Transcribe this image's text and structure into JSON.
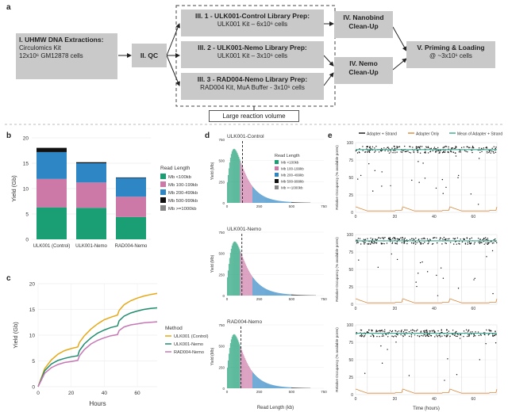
{
  "panel_a": {
    "letter": "a",
    "boxes": {
      "b1_title": "I. UHMW DNA Extractions:",
      "b1_l2": "Circulomics Kit",
      "b1_l3": "12x10⁶ GM12878 cells",
      "b2": "II. QC",
      "b3_title": "III. 1 - ULK001-Control Library Prep:",
      "b3_l2": "ULK001 Kit – 6x10⁶ cells",
      "b4_title": "III. 2 - ULK001-Nemo Library Prep:",
      "b4_l2": "ULK001 Kit – 3x10⁶ cells",
      "b5_title": "III. 3 - RAD004-Nemo Library Prep:",
      "b5_l2": "RAD004 Kit, MuA Buffer - 3x10⁶ cells",
      "b6_l1": "IV. Nanobind",
      "b6_l2": "Clean-Up",
      "b7_l1": "IV. Nemo",
      "b7_l2": "Clean-Up",
      "b8_l1": "V. Priming & Loading",
      "b8_l2": "@ ~3x10⁶ cells",
      "note": "Large reaction volume"
    }
  },
  "chart_data": [
    {
      "panel": "b",
      "type": "bar",
      "stacked": true,
      "categories": [
        "ULK001 (Control)",
        "ULK001-Nemo",
        "RAD004-Nemo"
      ],
      "ylabel": "Yield (Gb)",
      "ylim": [
        0,
        20
      ],
      "yticks": [
        0,
        5,
        10,
        15,
        20
      ],
      "legend_title": "Read Length",
      "series": [
        {
          "name": "Mb <100kb",
          "color": "#1a9e74",
          "values": [
            6.3,
            6.2,
            4.4
          ]
        },
        {
          "name": "Mb 100-199kb",
          "color": "#cc79a7",
          "values": [
            5.6,
            5.0,
            4.0
          ]
        },
        {
          "name": "Mb 200-499kb",
          "color": "#2f86c4",
          "values": [
            5.3,
            3.8,
            3.7
          ]
        },
        {
          "name": "Mb 500-999kb",
          "color": "#111111",
          "values": [
            0.8,
            0.2,
            0.1
          ]
        },
        {
          "name": "Mb >=1000kb",
          "color": "#888888",
          "values": [
            0.1,
            0.0,
            0.0
          ]
        }
      ]
    },
    {
      "panel": "c",
      "type": "line",
      "xlabel": "Hours",
      "ylabel": "Yield (Gb)",
      "xlim": [
        0,
        72
      ],
      "ylim": [
        0,
        20
      ],
      "xticks": [
        0,
        20,
        40,
        60
      ],
      "yticks": [
        0,
        5,
        10,
        15,
        20
      ],
      "legend_title": "Method",
      "series": [
        {
          "name": "ULK001 (Control)",
          "color": "#e6a817",
          "x": [
            0,
            4,
            8,
            12,
            16,
            20,
            24,
            25,
            28,
            32,
            36,
            40,
            44,
            48,
            49,
            52,
            56,
            60,
            64,
            68,
            72
          ],
          "y": [
            0,
            3.5,
            5.2,
            6.3,
            7.0,
            7.4,
            7.7,
            8.6,
            9.9,
            11.2,
            12.2,
            13.0,
            13.5,
            13.9,
            14.8,
            15.9,
            16.7,
            17.2,
            17.6,
            17.9,
            18.1
          ]
        },
        {
          "name": "ULK001-Nemo",
          "color": "#1f8c6e",
          "x": [
            0,
            4,
            8,
            12,
            16,
            20,
            24,
            25,
            28,
            32,
            36,
            40,
            44,
            48,
            49,
            52,
            56,
            60,
            64,
            68,
            72
          ],
          "y": [
            0,
            3.1,
            4.4,
            5.1,
            5.5,
            5.8,
            6.0,
            7.0,
            8.3,
            9.5,
            10.4,
            11.0,
            11.5,
            11.8,
            12.8,
            13.7,
            14.3,
            14.7,
            15.0,
            15.2,
            15.3
          ]
        },
        {
          "name": "RAD004-Nemo",
          "color": "#c678b5",
          "x": [
            0,
            4,
            8,
            12,
            16,
            20,
            24,
            25,
            28,
            32,
            36,
            40,
            44,
            48,
            49,
            52,
            56,
            60,
            64,
            68,
            72
          ],
          "y": [
            0,
            2.6,
            3.7,
            4.3,
            4.7,
            4.9,
            5.1,
            6.0,
            7.2,
            8.3,
            9.0,
            9.5,
            9.9,
            10.1,
            10.9,
            11.6,
            12.0,
            12.2,
            12.4,
            12.5,
            12.6
          ]
        }
      ]
    },
    {
      "panel": "d",
      "type": "bar",
      "histograms": [
        {
          "title": "ULK001-Control",
          "peak_x": 55,
          "n50_line": 120,
          "ymax": 750
        },
        {
          "title": "ULK001-Nemo",
          "peak_x": 60,
          "n50_line": 115,
          "ymax": 750
        },
        {
          "title": "RAD004-Nemo",
          "peak_x": 55,
          "n50_line": 108,
          "ymax": 750
        }
      ],
      "xlabel": "Read Length (kb)",
      "ylabel": "Yield (Mb)",
      "xlim": [
        0,
        750
      ],
      "xticks": [
        0,
        250,
        500,
        750
      ],
      "yticks": [
        0,
        250,
        500,
        750
      ],
      "legend_title": "Read Length",
      "bins": [
        {
          "name": "Mb <100kb",
          "color": "#1a9e74",
          "from": 0,
          "to": 100
        },
        {
          "name": "Mb 100-199kb",
          "color": "#cc79a7",
          "from": 100,
          "to": 200
        },
        {
          "name": "Mb 200-499kb",
          "color": "#2f86c4",
          "from": 200,
          "to": 500
        },
        {
          "name": "Mb 500-999kb",
          "color": "#111111",
          "from": 500,
          "to": 750
        },
        {
          "name": "Mb >=1000kb",
          "color": "#888888",
          "from": 750,
          "to": 750
        }
      ]
    },
    {
      "panel": "e",
      "type": "scatter",
      "legend": [
        "Adapter + Strand",
        "Adapter Only",
        "Mean of Adapter + Strand"
      ],
      "legend_colors": [
        "#111111",
        "#d9883c",
        "#3aa88f"
      ],
      "xlabel": "Time (hours)",
      "ylabel": "Relative Occupancy (% available pores)",
      "xlim": [
        0,
        72
      ],
      "ylim": [
        0,
        100
      ],
      "xticks": [
        0,
        20,
        40,
        60
      ],
      "yticks": [
        0,
        25,
        50,
        75,
        100
      ],
      "panels": [
        {
          "mean": 90,
          "reload_hours": [
            24,
            48
          ]
        },
        {
          "mean": 91,
          "reload_hours": [
            24,
            48
          ]
        },
        {
          "mean": 88,
          "reload_hours": [
            24,
            48
          ]
        }
      ]
    }
  ],
  "letters": {
    "b": "b",
    "c": "c",
    "d": "d",
    "e": "e"
  }
}
